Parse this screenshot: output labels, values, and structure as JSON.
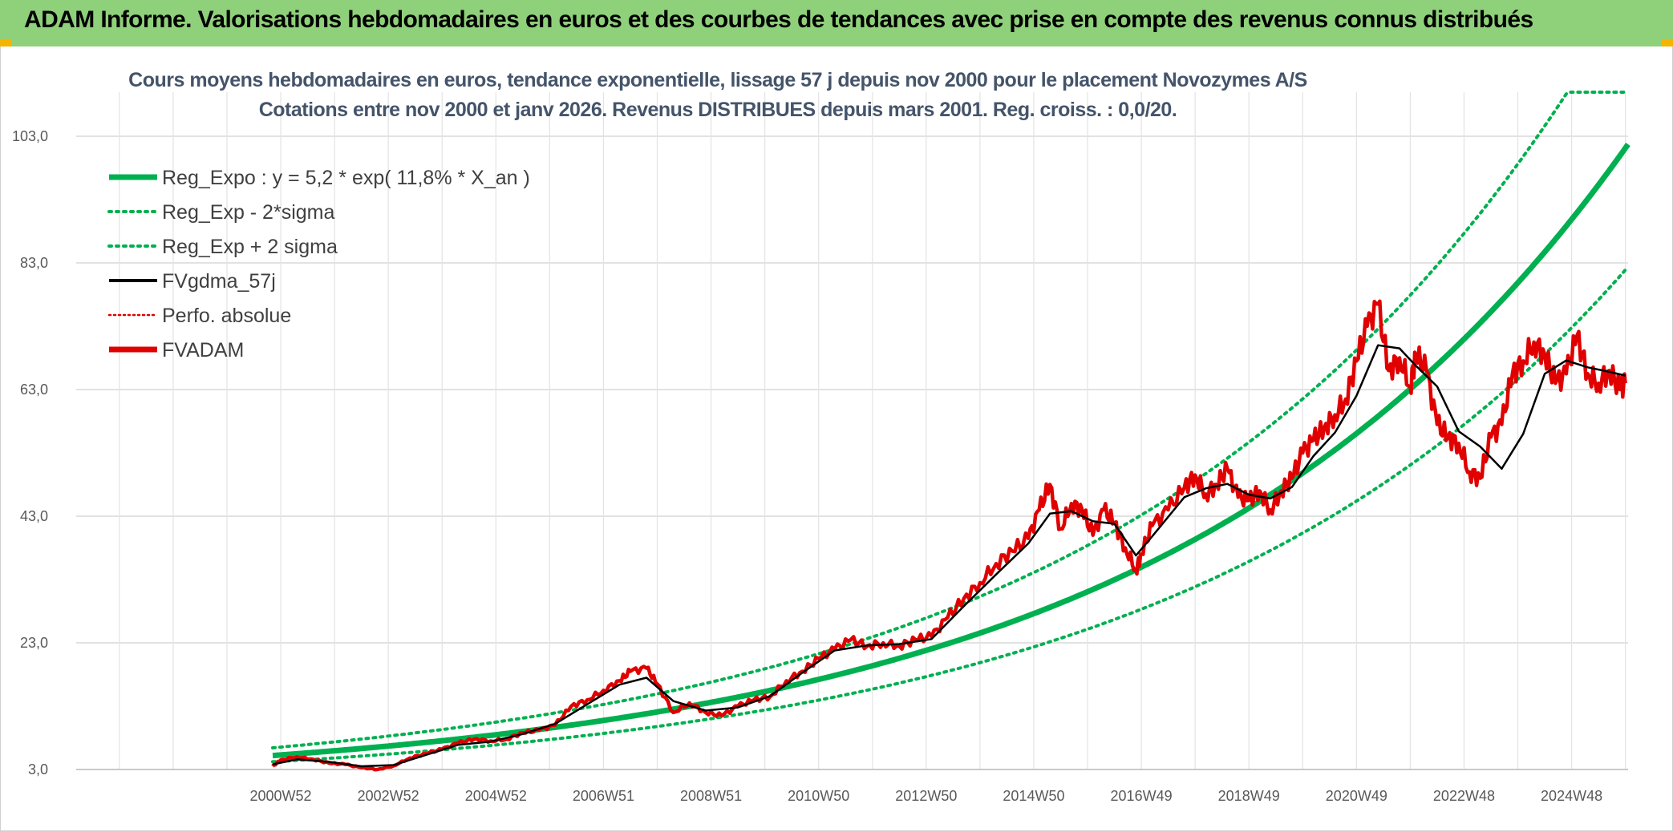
{
  "banner": {
    "title": "ADAM Informe. Valorisations hebdomadaires en euros et des courbes de tendances avec prise en compte des revenus connus distribués"
  },
  "chart_data": {
    "type": "line",
    "title": "Cours moyens hebdomadaires en euros, tendance exponentielle, lissage 57 j depuis nov 2000 pour le placement Novozymes A/S",
    "subtitle": "Cotations entre nov 2000 et janv 2026. Revenus DISTRIBUES depuis mars 2001. Reg. croiss. : 0,0/20.",
    "xlabel": "",
    "ylabel": "",
    "ylim": [
      3,
      103
    ],
    "yticks": [
      "3,0",
      "23,0",
      "43,0",
      "63,0",
      "83,0",
      "103,0"
    ],
    "ytick_values": [
      3,
      23,
      43,
      63,
      83,
      103
    ],
    "xlim": [
      2000.85,
      2026.05
    ],
    "xticks": [
      "2000W52",
      "2002W52",
      "2004W52",
      "2006W51",
      "2008W51",
      "2010W50",
      "2012W50",
      "2014W50",
      "2016W49",
      "2018W49",
      "2020W49",
      "2022W48",
      "2024W48"
    ],
    "xtick_values": [
      2001.0,
      2003.0,
      2005.0,
      2007.0,
      2009.0,
      2011.0,
      2013.0,
      2015.0,
      2017.0,
      2019.0,
      2021.0,
      2023.0,
      2025.0
    ],
    "grid": true,
    "legend_position": "top-left",
    "regression": {
      "a": 5.2,
      "rate": 0.118,
      "x0": 2000.85,
      "sigma_factor": 1.235
    },
    "legend": [
      {
        "label": "Reg_Expo : y = 5,2 * exp( 11,8% *  X_an )",
        "color": "#00b050",
        "style": "solid-thick"
      },
      {
        "label": "Reg_Exp - 2*sigma",
        "color": "#00b050",
        "style": "dotted"
      },
      {
        "label": "Reg_Exp + 2 sigma",
        "color": "#00b050",
        "style": "dotted"
      },
      {
        "label": "FVgdma_57j",
        "color": "#000000",
        "style": "solid"
      },
      {
        "label": "Perfo. absolue",
        "color": "#e00000",
        "style": "dotted"
      },
      {
        "label": "FVADAM",
        "color": "#e00000",
        "style": "solid-thick"
      }
    ],
    "series": [
      {
        "name": "FVADAM",
        "x": [
          2000.85,
          2001.0,
          2001.3,
          2001.6,
          2001.9,
          2002.2,
          2002.5,
          2002.8,
          2003.1,
          2003.4,
          2003.7,
          2004.0,
          2004.3,
          2004.6,
          2004.9,
          2005.2,
          2005.5,
          2005.8,
          2006.1,
          2006.4,
          2006.7,
          2007.0,
          2007.3,
          2007.5,
          2007.8,
          2008.0,
          2008.3,
          2008.6,
          2008.9,
          2009.2,
          2009.5,
          2009.8,
          2010.1,
          2010.4,
          2010.7,
          2011.0,
          2011.3,
          2011.6,
          2011.9,
          2012.2,
          2012.5,
          2012.8,
          2013.1,
          2013.4,
          2013.7,
          2014.0,
          2014.3,
          2014.6,
          2014.9,
          2015.1,
          2015.3,
          2015.5,
          2015.7,
          2015.9,
          2016.1,
          2016.3,
          2016.5,
          2016.7,
          2016.9,
          2017.0,
          2017.2,
          2017.5,
          2017.8,
          2018.0,
          2018.2,
          2018.4,
          2018.6,
          2018.8,
          2019.0,
          2019.2,
          2019.4,
          2019.6,
          2019.8,
          2020.0,
          2020.2,
          2020.4,
          2020.6,
          2020.8,
          2021.0,
          2021.2,
          2021.4,
          2021.6,
          2021.8,
          2022.0,
          2022.1,
          2022.3,
          2022.5,
          2022.7,
          2022.9,
          2023.1,
          2023.3,
          2023.5,
          2023.7,
          2023.9,
          2024.1,
          2024.3,
          2024.5,
          2024.7,
          2024.9,
          2025.1,
          2025.3,
          2025.5,
          2025.7,
          2025.9,
          2026.0
        ],
        "values": [
          3.5,
          4.5,
          5.0,
          4.6,
          4.0,
          3.8,
          3.3,
          3.0,
          3.6,
          4.8,
          5.5,
          6.2,
          7.2,
          7.8,
          7.5,
          7.8,
          8.8,
          9.2,
          10.0,
          13.0,
          14.0,
          15.5,
          17.0,
          18.5,
          19.0,
          16.5,
          12.0,
          13.5,
          12.0,
          11.5,
          13.0,
          14.0,
          14.5,
          17.0,
          18.5,
          20.5,
          22.0,
          23.5,
          22.5,
          23.0,
          22.5,
          23.5,
          24.0,
          27.0,
          30.0,
          32.5,
          35.5,
          37.5,
          39.5,
          44.0,
          48.0,
          41.0,
          45.0,
          44.0,
          40.0,
          44.0,
          42.0,
          38.0,
          34.5,
          37.0,
          41.5,
          44.0,
          47.5,
          49.5,
          46.5,
          48.0,
          50.5,
          46.0,
          45.5,
          47.0,
          44.0,
          47.0,
          49.0,
          53.0,
          55.0,
          57.0,
          59.0,
          61.5,
          67.5,
          73.0,
          76.5,
          66.0,
          68.0,
          63.5,
          68.5,
          66.0,
          57.5,
          55.5,
          54.5,
          50.0,
          49.0,
          55.5,
          57.5,
          65.5,
          67.5,
          70.5,
          68.5,
          64.0,
          65.5,
          71.5,
          65.5,
          64.0,
          66.0,
          63.0,
          64.0
        ]
      },
      {
        "name": "FVgdma_57j",
        "x": [
          2000.85,
          2001.3,
          2001.9,
          2002.5,
          2003.1,
          2003.7,
          2004.3,
          2004.9,
          2005.5,
          2006.1,
          2006.7,
          2007.3,
          2007.8,
          2008.3,
          2008.9,
          2009.5,
          2010.1,
          2010.7,
          2011.3,
          2011.9,
          2012.5,
          2013.1,
          2013.7,
          2014.3,
          2014.9,
          2015.3,
          2015.7,
          2016.1,
          2016.5,
          2016.9,
          2017.2,
          2017.8,
          2018.2,
          2018.6,
          2019.0,
          2019.4,
          2019.8,
          2020.2,
          2020.6,
          2021.0,
          2021.4,
          2021.8,
          2022.1,
          2022.5,
          2022.9,
          2023.3,
          2023.7,
          2024.1,
          2024.5,
          2024.9,
          2025.3,
          2025.7,
          2026.0
        ],
        "values": [
          3.8,
          4.6,
          4.2,
          3.5,
          3.7,
          5.3,
          6.9,
          7.4,
          8.6,
          10.2,
          13.3,
          16.4,
          17.5,
          13.8,
          12.3,
          12.8,
          14.6,
          18.3,
          21.8,
          22.6,
          22.8,
          23.6,
          28.8,
          33.8,
          38.7,
          43.4,
          43.8,
          42.2,
          41.8,
          36.8,
          39.8,
          46.0,
          47.4,
          48.1,
          46.4,
          45.8,
          47.6,
          52.5,
          56.2,
          62.0,
          70.0,
          69.5,
          66.8,
          63.5,
          56.4,
          54.0,
          50.5,
          56.0,
          65.5,
          67.6,
          66.5,
          65.8,
          65.2
        ]
      }
    ]
  }
}
